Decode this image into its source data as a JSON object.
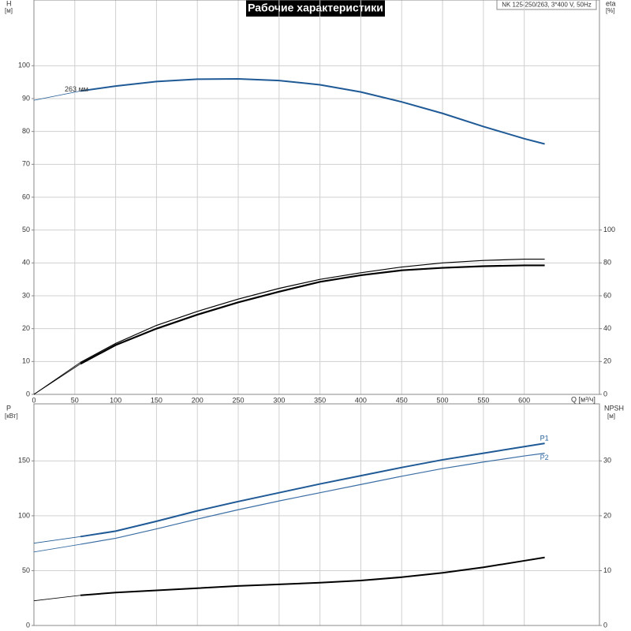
{
  "chart_data": [
    {
      "type": "line",
      "title": "Рабочие характеристики",
      "subtitle": "NK 125-250/263, 3*400 V, 50Hz",
      "ylabel": "H",
      "yunit": "[м]",
      "y2label": "eta",
      "y2unit": "[%]",
      "xlabel": "Q [м³/ч]",
      "x": [
        0,
        57,
        100,
        150,
        200,
        250,
        300,
        350,
        400,
        450,
        500,
        550,
        600,
        625
      ],
      "series": [
        {
          "name": "263 мм",
          "color": "#1f5a96",
          "width": 2,
          "values": [
            89.5,
            92.3,
            93.8,
            95.2,
            95.9,
            96,
            95.5,
            94.2,
            92,
            89,
            85.5,
            81.5,
            77.8,
            76.2
          ]
        },
        {
          "color": "#000000",
          "width": 1.2,
          "axis": "y2",
          "values": [
            0,
            19.5,
            31,
            42,
            50.5,
            58,
            64.5,
            70,
            74,
            77.5,
            80,
            81.5,
            82.3,
            82.3
          ]
        },
        {
          "color": "#000000",
          "width": 2.2,
          "axis": "y2",
          "values": [
            0,
            18.6,
            30,
            40,
            48.5,
            56,
            62.5,
            68.5,
            72.5,
            75.5,
            77,
            78,
            78.5,
            78.5
          ]
        }
      ],
      "xlim": [
        0,
        692
      ],
      "xticks": [
        0,
        50,
        100,
        150,
        200,
        250,
        300,
        350,
        400,
        450,
        500,
        550,
        600
      ],
      "ylim": [
        0,
        120
      ],
      "yticks": [
        0,
        10,
        20,
        30,
        40,
        50,
        60,
        70,
        80,
        90,
        100
      ],
      "y2lim": [
        0,
        240
      ],
      "y2ticks": [
        0,
        20,
        40,
        60,
        80,
        100
      ],
      "grid": true
    },
    {
      "type": "line",
      "ylabel": "P",
      "yunit": "[кВт]",
      "y2label": "NPSH",
      "y2unit": "[м]",
      "x": [
        0,
        57,
        100,
        150,
        200,
        250,
        300,
        350,
        400,
        450,
        500,
        550,
        600,
        625
      ],
      "series": [
        {
          "name": "P1",
          "color": "#1f5a96",
          "width": 2,
          "values": [
            75,
            81,
            86,
            95,
            104.5,
            113,
            121,
            129,
            136.5,
            144,
            151,
            157,
            163,
            166
          ]
        },
        {
          "name": "P2",
          "color": "#3a6ea5",
          "width": 1.2,
          "values": [
            67,
            74,
            79.5,
            88,
            97,
            105.5,
            113.5,
            121,
            128.5,
            136,
            143,
            149,
            154.5,
            157
          ]
        },
        {
          "color": "#000000",
          "width": 2,
          "axis": "y2",
          "values": [
            4.5,
            5.5,
            6.0,
            6.4,
            6.8,
            7.2,
            7.5,
            7.8,
            8.2,
            8.8,
            9.6,
            10.6,
            11.8,
            12.4
          ]
        }
      ],
      "xlim": [
        0,
        692
      ],
      "ylim": [
        0,
        202
      ],
      "yticks": [
        0,
        50,
        100,
        150
      ],
      "y2lim": [
        0,
        40.4
      ],
      "y2ticks": [
        0,
        10,
        20,
        30
      ],
      "grid": true
    }
  ]
}
